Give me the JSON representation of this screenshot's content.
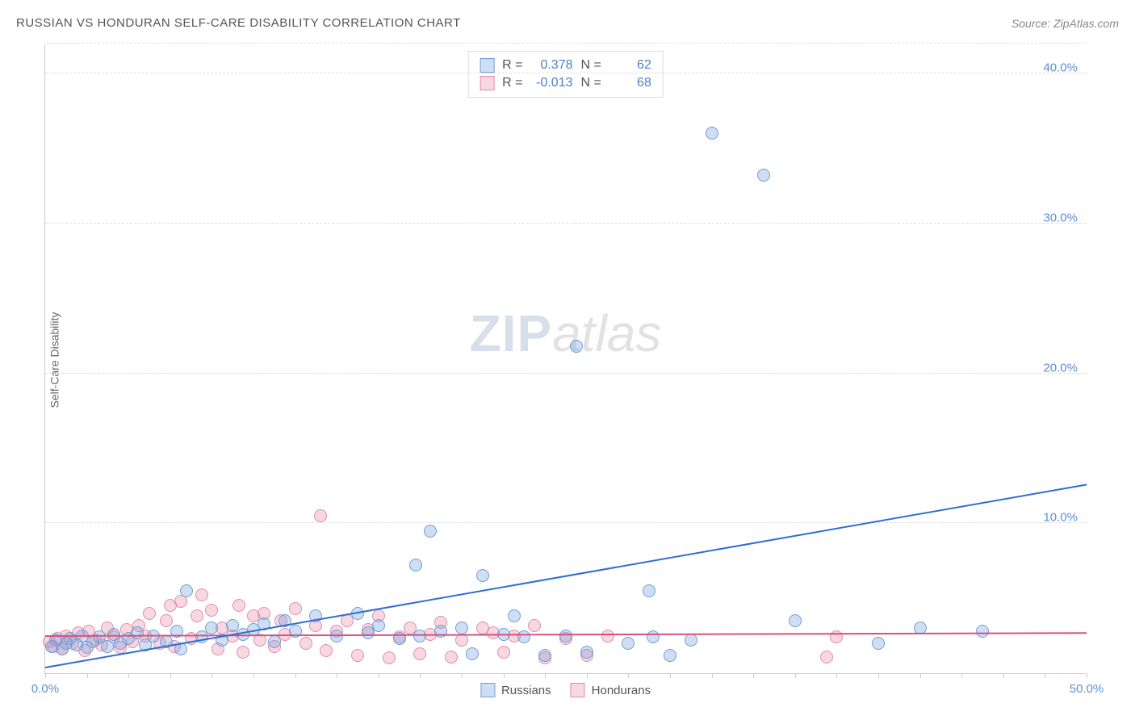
{
  "header": {
    "title": "RUSSIAN VS HONDURAN SELF-CARE DISABILITY CORRELATION CHART",
    "source_label": "Source: ",
    "source_name": "ZipAtlas.com"
  },
  "axes": {
    "ylabel": "Self-Care Disability",
    "xlim": [
      0,
      50
    ],
    "ylim": [
      0,
      42
    ],
    "xtick_labels": [
      {
        "pos": 0,
        "label": "0.0%"
      },
      {
        "pos": 50,
        "label": "50.0%"
      }
    ],
    "xtick_minor_step": 2,
    "ytick_labels": [
      {
        "pos": 10,
        "label": "10.0%"
      },
      {
        "pos": 20,
        "label": "20.0%"
      },
      {
        "pos": 30,
        "label": "30.0%"
      },
      {
        "pos": 40,
        "label": "40.0%"
      }
    ],
    "grid_color": "#dddddd",
    "tick_color": "#5b8fd6",
    "axis_color": "#cccccc"
  },
  "watermark": {
    "part1": "ZIP",
    "part2": "atlas"
  },
  "series": {
    "russians": {
      "label": "Russians",
      "fill": "rgba(120,160,220,0.35)",
      "stroke": "#6f9fd8",
      "marker_radius": 8,
      "R_label": "R =",
      "R_value": "0.378",
      "N_label": "N =",
      "N_value": "62",
      "trend": {
        "x1": 0,
        "y1": 0.3,
        "x2": 50,
        "y2": 12.5,
        "color": "#2e6fd0",
        "width": 2
      },
      "points": [
        [
          0.3,
          1.8
        ],
        [
          0.5,
          2.2
        ],
        [
          0.8,
          1.6
        ],
        [
          1.0,
          2.0
        ],
        [
          1.2,
          2.3
        ],
        [
          1.5,
          1.9
        ],
        [
          1.8,
          2.5
        ],
        [
          2.0,
          1.7
        ],
        [
          2.3,
          2.1
        ],
        [
          2.6,
          2.4
        ],
        [
          3.0,
          1.8
        ],
        [
          3.3,
          2.6
        ],
        [
          3.6,
          2.0
        ],
        [
          4.0,
          2.3
        ],
        [
          4.4,
          2.7
        ],
        [
          4.8,
          1.9
        ],
        [
          5.2,
          2.5
        ],
        [
          5.8,
          2.1
        ],
        [
          6.3,
          2.8
        ],
        [
          6.5,
          1.6
        ],
        [
          6.8,
          5.5
        ],
        [
          7.5,
          2.4
        ],
        [
          8.0,
          3.0
        ],
        [
          8.5,
          2.2
        ],
        [
          9.0,
          3.2
        ],
        [
          9.5,
          2.6
        ],
        [
          10.0,
          2.9
        ],
        [
          10.5,
          3.3
        ],
        [
          11.0,
          2.1
        ],
        [
          11.5,
          3.5
        ],
        [
          12.0,
          2.8
        ],
        [
          13.0,
          3.8
        ],
        [
          14.0,
          2.5
        ],
        [
          15.0,
          4.0
        ],
        [
          15.5,
          2.7
        ],
        [
          16.0,
          3.2
        ],
        [
          17.0,
          2.3
        ],
        [
          17.8,
          7.2
        ],
        [
          18.0,
          2.5
        ],
        [
          18.5,
          9.5
        ],
        [
          19.0,
          2.8
        ],
        [
          20.0,
          3.0
        ],
        [
          20.5,
          1.3
        ],
        [
          21.0,
          6.5
        ],
        [
          22.0,
          2.6
        ],
        [
          22.5,
          3.8
        ],
        [
          23.0,
          2.4
        ],
        [
          24.0,
          1.2
        ],
        [
          25.5,
          21.8
        ],
        [
          25.0,
          2.5
        ],
        [
          26.0,
          1.4
        ],
        [
          28.0,
          2.0
        ],
        [
          29.0,
          5.5
        ],
        [
          29.2,
          2.4
        ],
        [
          30.0,
          1.2
        ],
        [
          31.0,
          2.2
        ],
        [
          32.0,
          36.0
        ],
        [
          34.5,
          33.2
        ],
        [
          36.0,
          3.5
        ],
        [
          40.0,
          2.0
        ],
        [
          42.0,
          3.0
        ],
        [
          45.0,
          2.8
        ]
      ]
    },
    "hondurans": {
      "label": "Hondurans",
      "fill": "rgba(235,140,170,0.35)",
      "stroke": "#e08da9",
      "marker_radius": 8,
      "R_label": "R =",
      "R_value": "-0.013",
      "N_label": "N =",
      "N_value": "68",
      "trend": {
        "x1": 0,
        "y1": 2.4,
        "x2": 50,
        "y2": 2.6,
        "color": "#d6527e",
        "width": 2
      },
      "points": [
        [
          0.2,
          2.1
        ],
        [
          0.4,
          1.8
        ],
        [
          0.6,
          2.3
        ],
        [
          0.8,
          1.6
        ],
        [
          1.0,
          2.5
        ],
        [
          1.3,
          2.0
        ],
        [
          1.6,
          2.7
        ],
        [
          1.9,
          1.5
        ],
        [
          2.1,
          2.8
        ],
        [
          2.4,
          2.2
        ],
        [
          2.7,
          1.9
        ],
        [
          3.0,
          3.0
        ],
        [
          3.3,
          2.4
        ],
        [
          3.6,
          1.7
        ],
        [
          3.9,
          2.9
        ],
        [
          4.2,
          2.1
        ],
        [
          4.5,
          3.2
        ],
        [
          4.8,
          2.5
        ],
        [
          5.0,
          4.0
        ],
        [
          5.5,
          2.0
        ],
        [
          5.8,
          3.5
        ],
        [
          6.0,
          4.5
        ],
        [
          6.2,
          1.8
        ],
        [
          6.5,
          4.8
        ],
        [
          7.0,
          2.3
        ],
        [
          7.3,
          3.8
        ],
        [
          7.5,
          5.2
        ],
        [
          8.0,
          4.2
        ],
        [
          8.3,
          1.6
        ],
        [
          8.5,
          3.0
        ],
        [
          9.0,
          2.5
        ],
        [
          9.3,
          4.5
        ],
        [
          9.5,
          1.4
        ],
        [
          10.0,
          3.8
        ],
        [
          10.3,
          2.2
        ],
        [
          10.5,
          4.0
        ],
        [
          11.0,
          1.8
        ],
        [
          11.3,
          3.5
        ],
        [
          11.5,
          2.6
        ],
        [
          12.0,
          4.3
        ],
        [
          12.5,
          2.0
        ],
        [
          13.0,
          3.2
        ],
        [
          13.2,
          10.5
        ],
        [
          13.5,
          1.5
        ],
        [
          14.0,
          2.8
        ],
        [
          14.5,
          3.5
        ],
        [
          15.0,
          1.2
        ],
        [
          15.5,
          2.9
        ],
        [
          16.0,
          3.8
        ],
        [
          16.5,
          1.0
        ],
        [
          17.0,
          2.4
        ],
        [
          17.5,
          3.0
        ],
        [
          18.0,
          1.3
        ],
        [
          18.5,
          2.6
        ],
        [
          19.0,
          3.4
        ],
        [
          19.5,
          1.1
        ],
        [
          20.0,
          2.2
        ],
        [
          21.0,
          3.0
        ],
        [
          21.5,
          2.7
        ],
        [
          22.0,
          1.4
        ],
        [
          22.5,
          2.5
        ],
        [
          23.5,
          3.2
        ],
        [
          24.0,
          1.0
        ],
        [
          25.0,
          2.3
        ],
        [
          26.0,
          1.2
        ],
        [
          27.0,
          2.5
        ],
        [
          37.5,
          1.1
        ],
        [
          38.0,
          2.4
        ]
      ]
    }
  },
  "style": {
    "background": "#ffffff",
    "title_color": "#555555",
    "title_fontsize": 15,
    "label_fontsize": 14,
    "tick_fontsize": 15
  }
}
